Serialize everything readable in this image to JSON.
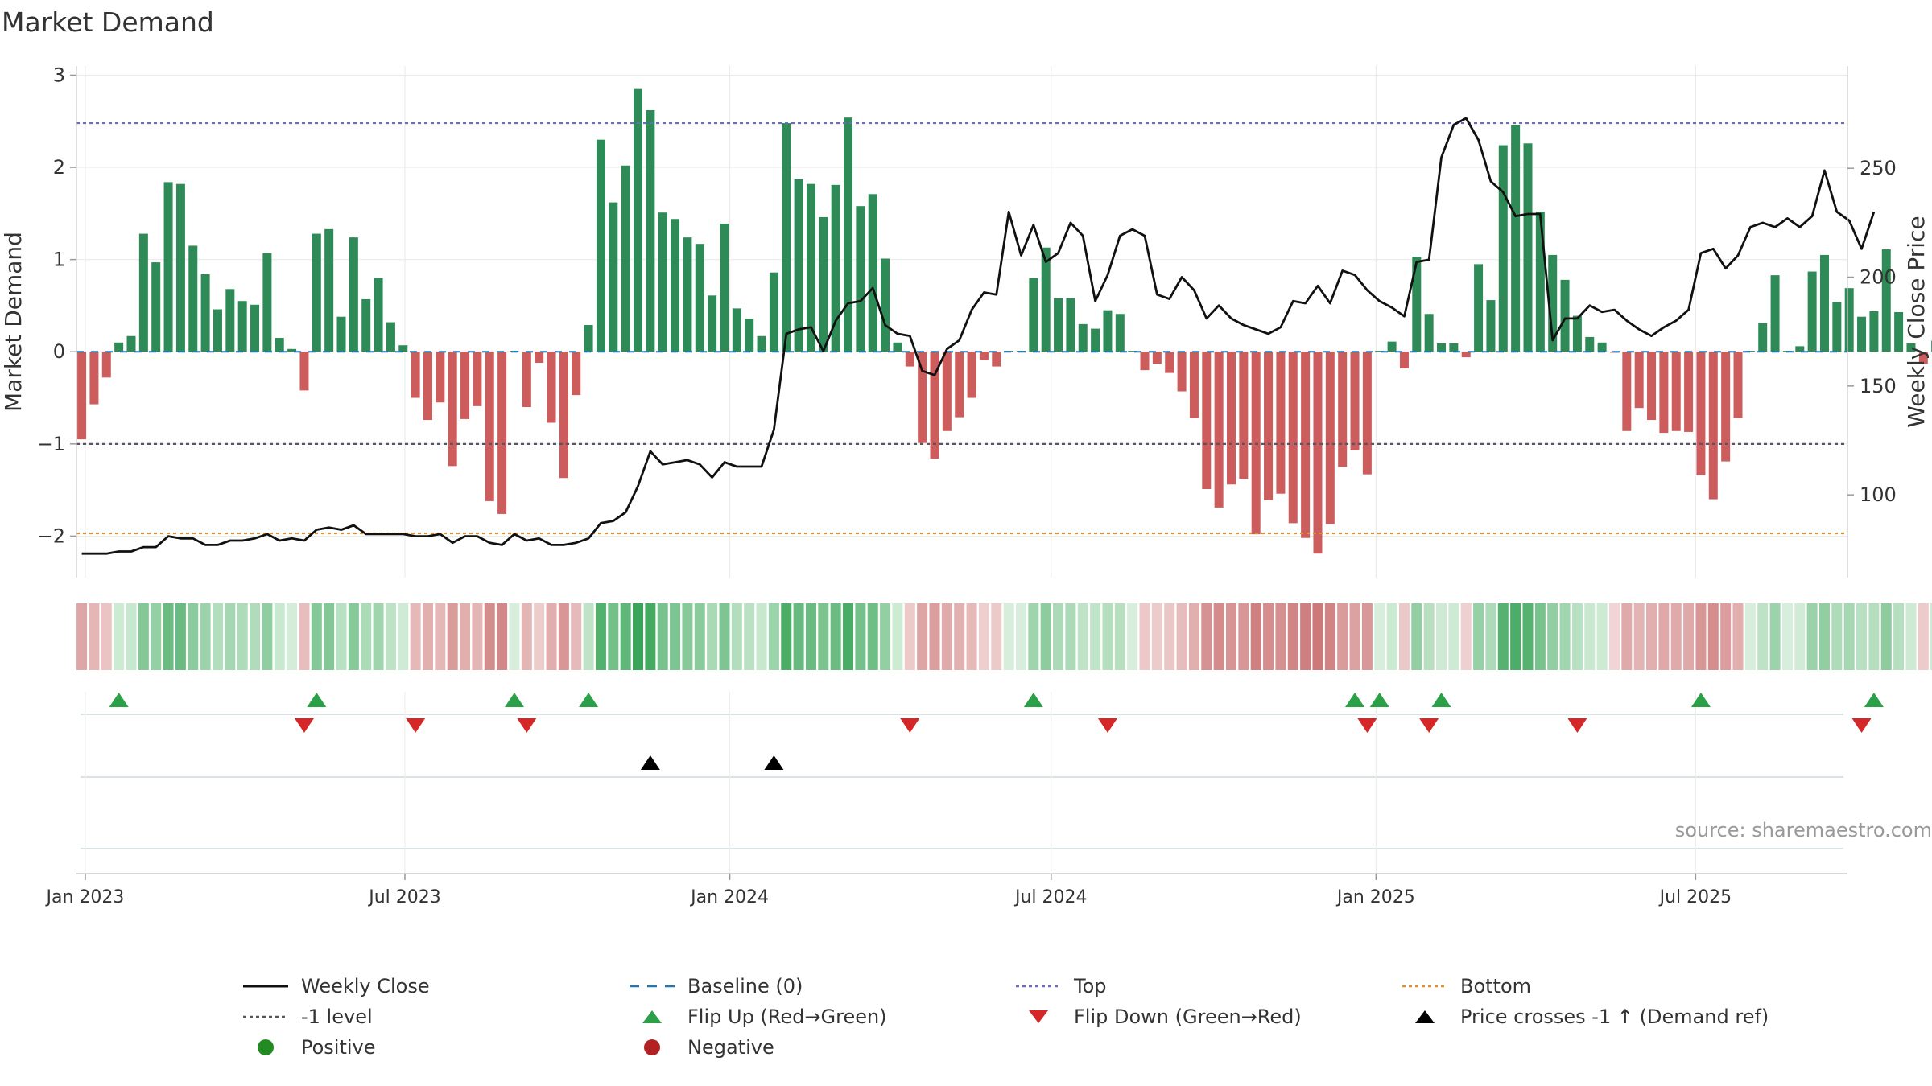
{
  "title": "Market Demand",
  "source": "source: sharemaestro.com",
  "colors": {
    "green": "#2e8b57",
    "red": "#cd5c5c",
    "price": "#111111",
    "top": "#6c6cbf",
    "bottom": "#e0902c",
    "minus1": "#555566",
    "baseline": "#1f77b4",
    "flip_up": "#2ca048",
    "flip_down": "#d62728",
    "cross": "#000000"
  },
  "chart_data": {
    "type": "bar",
    "title": "Market Demand",
    "ylabel": "Market Demand",
    "y2label": "Weekly Close Price",
    "ylim": [
      -2.45,
      3.1
    ],
    "y2lim": [
      62,
      297
    ],
    "yticks": [
      -2,
      -1,
      0,
      1,
      2,
      3
    ],
    "ytick_labels": [
      "−2",
      "−1",
      "0",
      "1",
      "2",
      "3"
    ],
    "y2ticks": [
      100,
      150,
      200,
      250
    ],
    "xlim": [
      "2022-12-27",
      "2025-09-25"
    ],
    "xticks": [
      {
        "date": "2023-01-01",
        "label": "Jan 2023"
      },
      {
        "date": "2023-07-01",
        "label": "Jul 2023"
      },
      {
        "date": "2024-01-01",
        "label": "Jan 2024"
      },
      {
        "date": "2024-07-01",
        "label": "Jul 2024"
      },
      {
        "date": "2025-01-01",
        "label": "Jan 2025"
      },
      {
        "date": "2025-07-01",
        "label": "Jul 2025"
      }
    ],
    "start_date": "2022-12-30",
    "week_step_days": 7,
    "reference_lines": {
      "top": 2.48,
      "minus1": -1.0,
      "bottom": -1.97,
      "baseline": 0
    },
    "demand": [
      -0.95,
      -0.57,
      -0.28,
      0.1,
      0.17,
      1.28,
      0.97,
      1.84,
      1.82,
      1.15,
      0.84,
      0.46,
      0.68,
      0.55,
      0.51,
      1.07,
      0.15,
      0.03,
      -0.42,
      1.28,
      1.33,
      0.38,
      1.24,
      0.57,
      0.8,
      0.32,
      0.07,
      -0.5,
      -0.74,
      -0.55,
      -1.24,
      -0.73,
      -0.59,
      -1.62,
      -1.76,
      0.01,
      -0.6,
      -0.12,
      -0.77,
      -1.37,
      -0.47,
      0.29,
      2.3,
      1.62,
      2.02,
      2.85,
      2.62,
      1.51,
      1.44,
      1.24,
      1.17,
      0.61,
      1.39,
      0.47,
      0.36,
      0.17,
      0.86,
      2.48,
      1.87,
      1.82,
      1.46,
      1.81,
      2.54,
      1.58,
      1.71,
      1.01,
      0.1,
      -0.16,
      -0.99,
      -1.16,
      -0.86,
      -0.71,
      -0.5,
      -0.09,
      -0.16,
      0.01,
      0.01,
      0.8,
      1.13,
      0.58,
      0.58,
      0.3,
      0.25,
      0.45,
      0.41,
      0.01,
      -0.2,
      -0.13,
      -0.23,
      -0.43,
      -0.72,
      -1.49,
      -1.69,
      -1.44,
      -1.38,
      -1.98,
      -1.61,
      -1.54,
      -1.86,
      -2.02,
      -2.19,
      -1.87,
      -1.25,
      -1.07,
      -1.33,
      0.01,
      0.11,
      -0.18,
      1.03,
      0.41,
      0.09,
      0.09,
      -0.06,
      0.95,
      0.56,
      2.24,
      2.46,
      2.26,
      1.52,
      1.05,
      0.78,
      0.39,
      0.16,
      0.1,
      -0.01,
      -0.86,
      -0.61,
      -0.74,
      -0.88,
      -0.86,
      -0.87,
      -1.34,
      -1.6,
      -1.19,
      -0.72,
      0.01,
      0.31,
      0.83,
      0.01,
      0.06,
      0.87,
      1.05,
      0.54,
      0.69,
      0.38,
      0.44,
      1.11,
      0.43,
      0.09,
      -0.13,
      0.12
    ],
    "price": [
      73,
      73,
      73,
      74,
      74,
      76,
      76,
      81,
      80,
      80,
      77,
      77,
      79,
      79,
      80,
      82,
      79,
      80,
      79,
      84,
      85,
      84,
      86,
      82,
      82,
      82,
      82,
      81,
      81,
      82,
      78,
      81,
      81,
      78,
      77,
      82,
      79,
      80,
      77,
      77,
      78,
      80,
      87,
      88,
      92,
      104,
      120,
      114,
      115,
      116,
      114,
      108,
      115,
      113,
      113,
      113,
      130,
      174,
      176,
      177,
      166,
      180,
      188,
      189,
      195,
      178,
      174,
      173,
      157,
      155,
      167,
      171,
      185,
      193,
      192,
      230,
      210,
      224,
      207,
      211,
      225,
      219,
      189,
      201,
      219,
      222,
      219,
      192,
      190,
      200,
      194,
      181,
      187,
      181,
      178,
      176,
      174,
      177,
      189,
      188,
      196,
      188,
      203,
      201,
      194,
      189,
      186,
      182,
      207,
      208,
      255,
      270,
      273,
      263,
      244,
      239,
      228,
      229,
      229,
      171,
      181,
      181,
      187,
      184,
      185,
      180,
      176,
      173,
      177,
      180,
      185,
      211,
      213,
      204,
      210,
      223,
      225,
      223,
      227,
      223,
      228,
      249,
      230,
      226,
      213,
      230
    ],
    "flip_up_weeks": [
      3,
      19,
      35,
      41,
      77,
      103,
      105,
      110,
      131,
      145
    ],
    "flip_down_weeks": [
      18,
      27,
      36,
      67,
      83,
      104,
      109,
      121,
      144
    ],
    "price_cross_weeks": [
      46,
      56
    ],
    "legend": [
      {
        "label": "Weekly Close",
        "symbol": "line-solid",
        "color": "#111111"
      },
      {
        "label": "Baseline (0)",
        "symbol": "line-dash",
        "color": "#1f77b4"
      },
      {
        "label": "Top",
        "symbol": "line-dot",
        "color": "#6c6cbf"
      },
      {
        "label": "Bottom",
        "symbol": "line-dot",
        "color": "#e0902c"
      },
      {
        "label": "-1 level",
        "symbol": "line-dot",
        "color": "#555566"
      },
      {
        "label": "Flip Up (Red→Green)",
        "symbol": "triangle-up",
        "color": "#2ca048"
      },
      {
        "label": "Flip Down (Green→Red)",
        "symbol": "triangle-down",
        "color": "#d62728"
      },
      {
        "label": "Price crosses -1 ↑ (Demand ref)",
        "symbol": "triangle-up",
        "color": "#000000"
      },
      {
        "label": "Positive",
        "symbol": "circle",
        "color": "#228b22"
      },
      {
        "label": "Negative",
        "symbol": "circle",
        "color": "#b22222"
      }
    ]
  }
}
